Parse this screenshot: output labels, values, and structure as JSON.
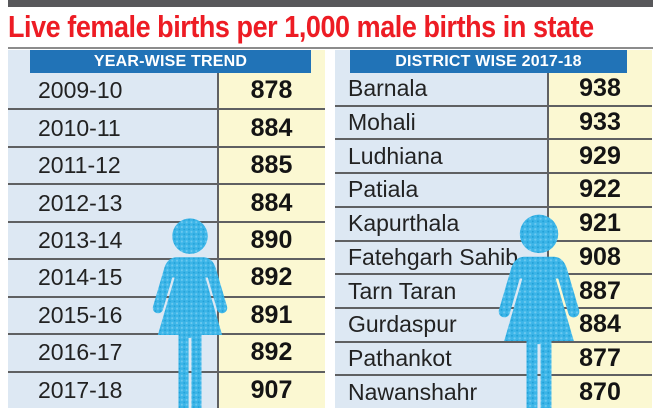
{
  "title": "Live female births per 1,000 male births in state",
  "tables": {
    "year_wise": {
      "header": "YEAR-WISE TREND",
      "rows": [
        [
          "2009-10",
          "878"
        ],
        [
          "2010-11",
          "884"
        ],
        [
          "2011-12",
          "885"
        ],
        [
          "2012-13",
          "884"
        ],
        [
          "2013-14",
          "890"
        ],
        [
          "2014-15",
          "892"
        ],
        [
          "2015-16",
          "891"
        ],
        [
          "2016-17",
          "892"
        ],
        [
          "2017-18",
          "907"
        ]
      ]
    },
    "district_wise": {
      "header": "DISTRICT WISE 2017-18",
      "rows": [
        [
          "Barnala",
          "938"
        ],
        [
          "Mohali",
          "933"
        ],
        [
          "Ludhiana",
          "929"
        ],
        [
          "Patiala",
          "922"
        ],
        [
          "Kapurthala",
          "921"
        ],
        [
          "Fatehgarh Sahib",
          "908"
        ],
        [
          "Tarn Taran",
          "887"
        ],
        [
          "Gurdaspur",
          "884"
        ],
        [
          "Pathankot",
          "877"
        ],
        [
          "Nawanshahr",
          "870"
        ]
      ]
    }
  },
  "chart_data": [
    {
      "type": "table",
      "title": "YEAR-WISE TREND",
      "columns": [
        "Year",
        "Live female births per 1,000 male births"
      ],
      "rows": [
        [
          "2009-10",
          878
        ],
        [
          "2010-11",
          884
        ],
        [
          "2011-12",
          885
        ],
        [
          "2012-13",
          884
        ],
        [
          "2013-14",
          890
        ],
        [
          "2014-15",
          892
        ],
        [
          "2015-16",
          891
        ],
        [
          "2016-17",
          892
        ],
        [
          "2017-18",
          907
        ]
      ]
    },
    {
      "type": "table",
      "title": "DISTRICT WISE 2017-18",
      "columns": [
        "District",
        "Live female births per 1,000 male births"
      ],
      "rows": [
        [
          "Barnala",
          938
        ],
        [
          "Mohali",
          933
        ],
        [
          "Ludhiana",
          929
        ],
        [
          "Patiala",
          922
        ],
        [
          "Kapurthala",
          921
        ],
        [
          "Fatehgarh Sahib",
          908
        ],
        [
          "Tarn Taran",
          887
        ],
        [
          "Gurdaspur",
          884
        ],
        [
          "Pathankot",
          877
        ],
        [
          "Nawanshahr",
          870
        ]
      ]
    }
  ],
  "colors": {
    "title_red": "#ed1c24",
    "top_bar_gray": "#58585b",
    "header_blue": "#2173b7",
    "label_column_blue": "#dde8f3",
    "value_column_yellow": "#fbf8d2",
    "row_line_gray": "#5f6062",
    "figure_cyan": "#3cb5e8"
  },
  "icons": {
    "female_figure": "woman-pictogram"
  }
}
